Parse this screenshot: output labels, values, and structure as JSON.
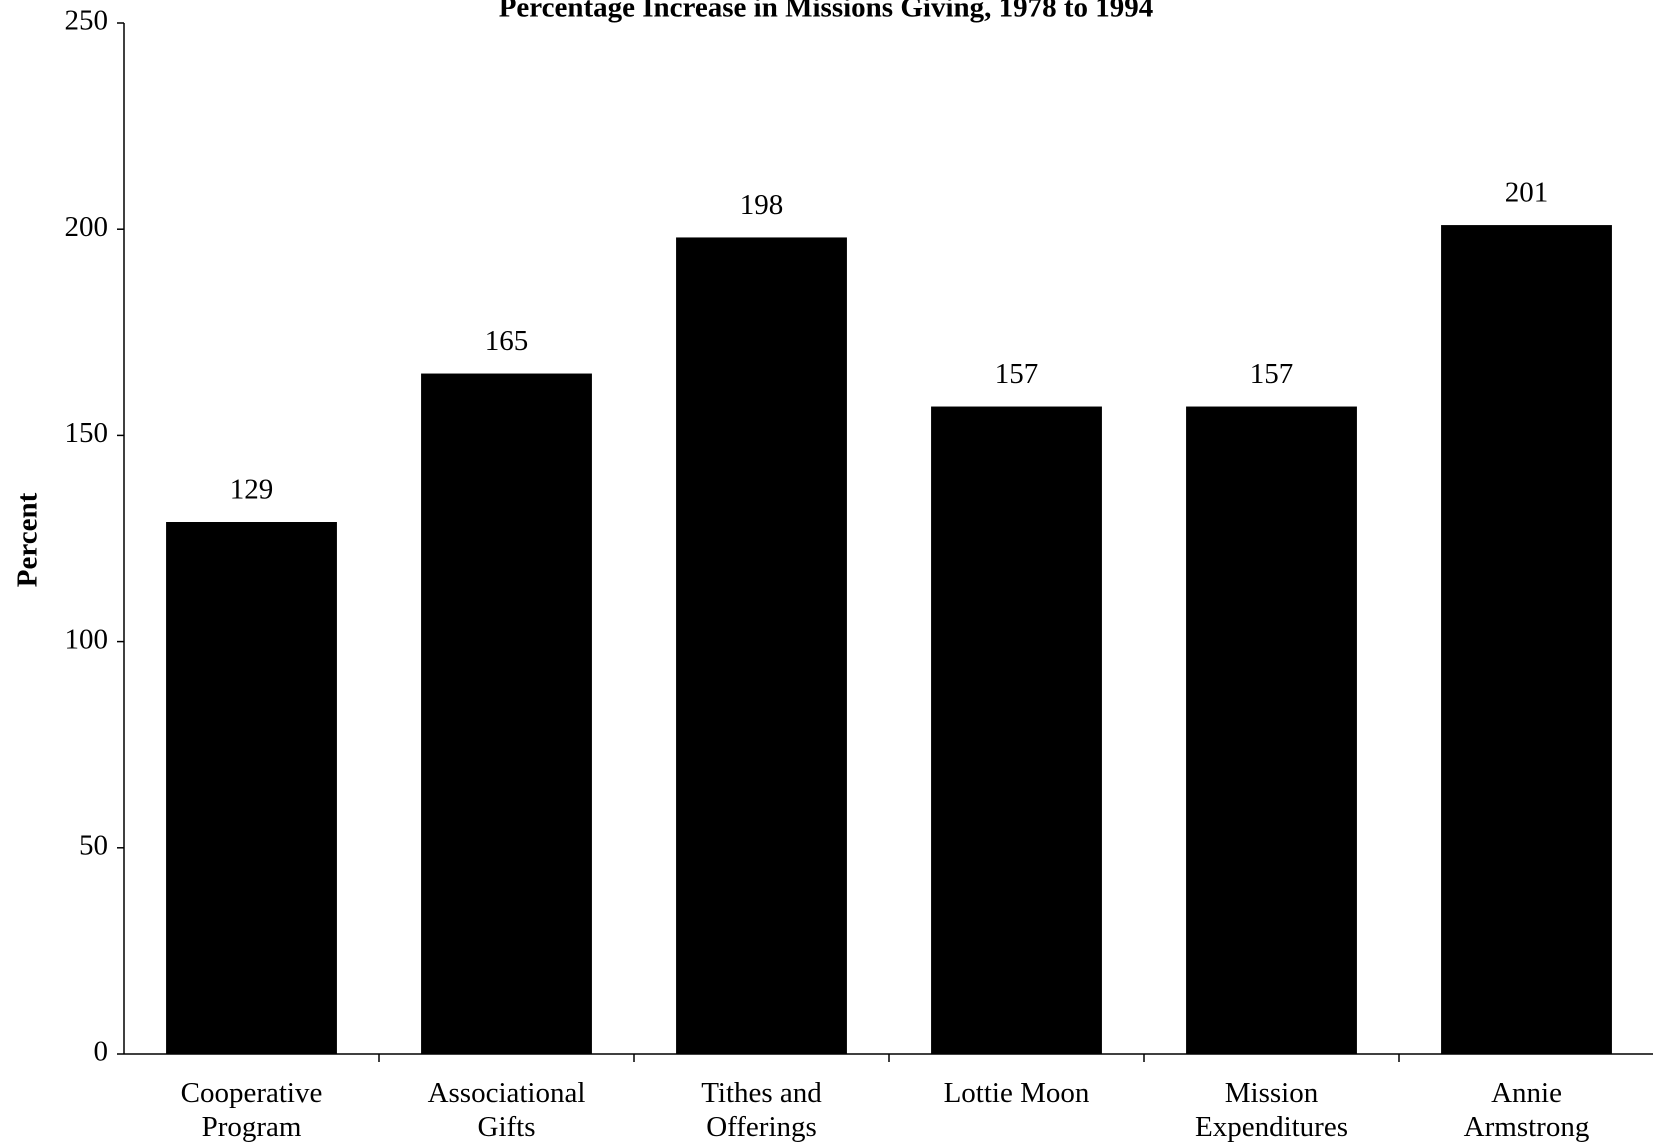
{
  "chart_data": {
    "type": "bar",
    "title": "Percentage Increase in Missions Giving, 1978 to 1994",
    "y_label": "Percent",
    "categories": [
      "Cooperative Program",
      "Associational Gifts",
      "Tithes and Offerings",
      "Lottie Moon",
      "Mission Expenditures",
      "Annie Armstrong"
    ],
    "values": [
      129,
      165,
      198,
      157,
      157,
      201
    ],
    "color": "#000000",
    "ylim": [
      0,
      250
    ],
    "yticks": [
      0,
      50,
      100,
      150,
      200,
      250
    ],
    "grid": false
  }
}
